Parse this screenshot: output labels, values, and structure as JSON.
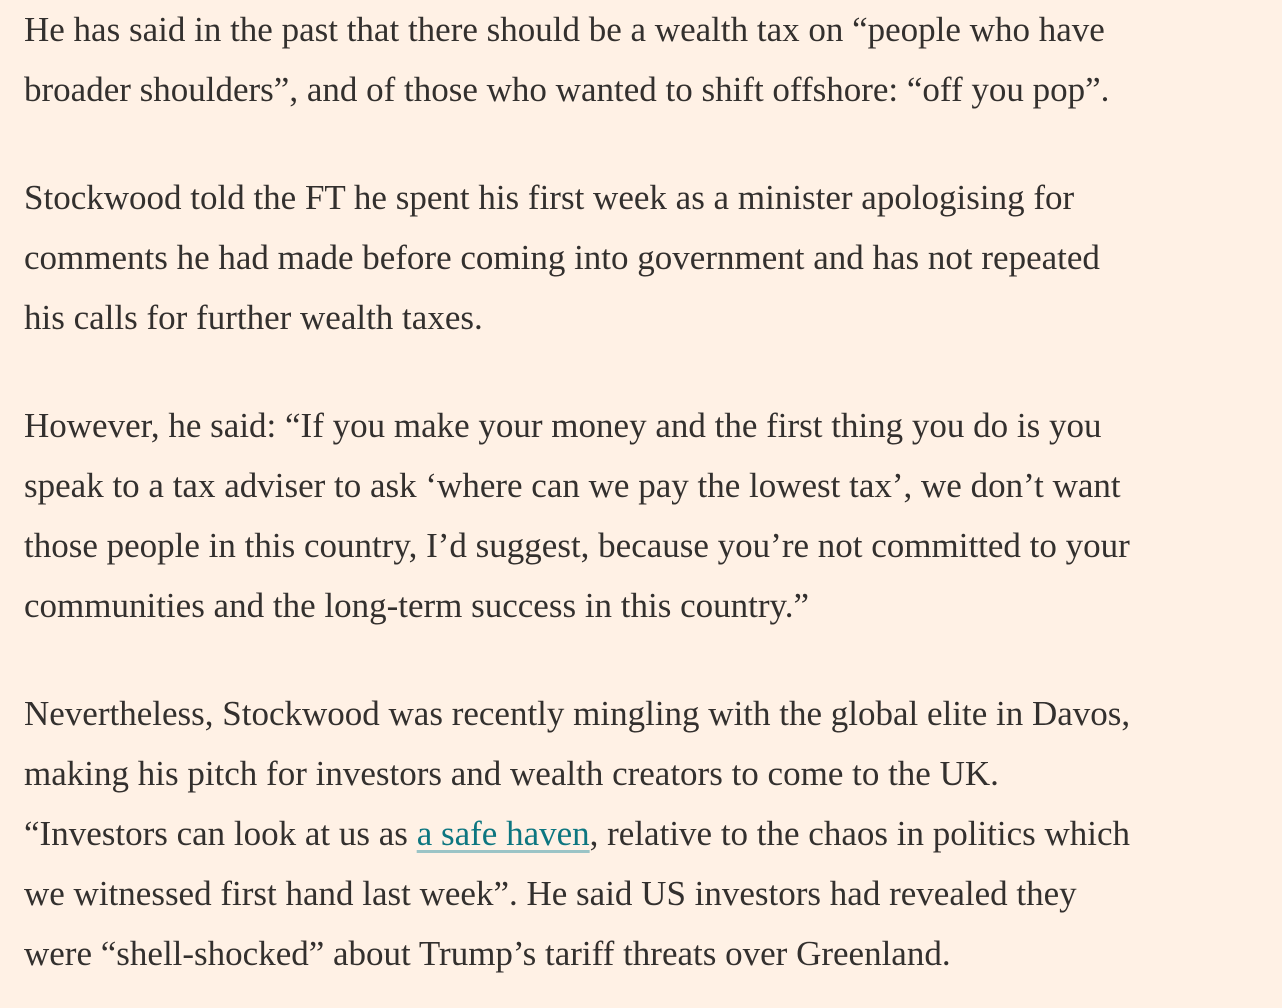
{
  "paragraphs": [
    {
      "lines": [
        "He has said in the past that there should be a wealth tax on “people who have",
        "broader shoulders”, and of those who wanted to shift offshore: “off you pop”."
      ]
    },
    {
      "lines": [
        "Stockwood told the FT he spent his first week as a minister apologising for",
        "comments he had made before coming into government and has not repeated",
        "his calls for further wealth taxes."
      ]
    },
    {
      "lines": [
        "However, he said: “If you make your money and the first thing you do is you",
        "speak to a tax adviser to ask ‘where can we pay the lowest tax’, we don’t want",
        "those people in this country, I’d suggest, because you’re not committed to your",
        "communities and the long-term success in this country.”"
      ]
    },
    {
      "lines": [
        "Nevertheless, Stockwood was recently mingling with the global elite in Davos,",
        "making his pitch for investors and wealth creators to come to the UK.",
        {
          "text": "“Investors can look at us as ",
          "link": "a safe haven",
          "after": ", relative to the chaos in politics which"
        },
        "we witnessed first hand last week”. He said US investors had revealed they",
        "were “shell-shocked” about Trump’s tariff threats over Greenland."
      ]
    }
  ]
}
